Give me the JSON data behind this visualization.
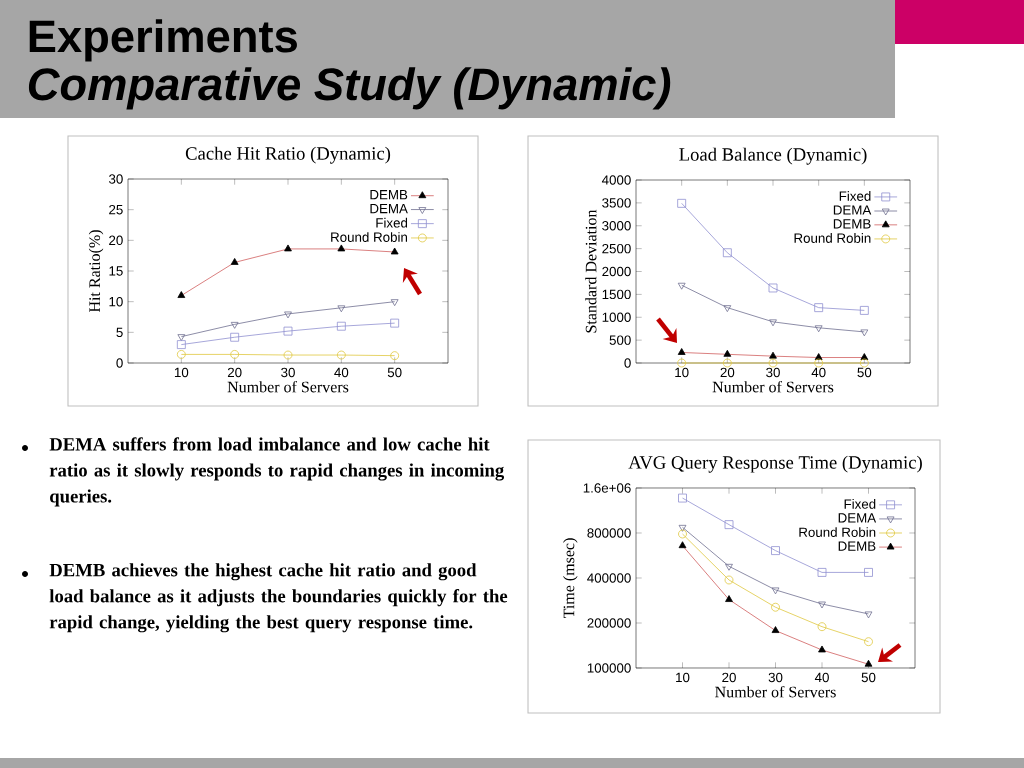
{
  "chart_data": [
    {
      "type": "other",
      "title": "Experiments",
      "subtitle": "Comparative Study (Dynamic)",
      "annotations": [
        "DEMA suffers from load imbalance and low cache hit ratio as it slowly responds to rapid changes in incoming queries.",
        "DEMB achieves the highest cache hit ratio and good load balance as it adjusts the boundaries quickly for the rapid change, yielding the best query response time."
      ]
    },
    {
      "type": "line",
      "title": "Cache Hit Ratio (Dynamic)",
      "xlabel": "Number of Servers",
      "ylabel": "Hit Ratio(%)",
      "x": [
        10,
        20,
        30,
        40,
        50
      ],
      "xlim": [
        0,
        60
      ],
      "xticks": [
        10,
        20,
        30,
        40,
        50
      ],
      "ylim": [
        0,
        30
      ],
      "yticks": [
        0,
        5,
        10,
        15,
        20,
        25,
        30
      ],
      "legend": "top right",
      "series": [
        {
          "name": "DEMB",
          "color": "#d06060",
          "marker": "triangle-filled",
          "values": [
            11.0,
            16.4,
            18.6,
            18.6,
            18.1
          ]
        },
        {
          "name": "DEMA",
          "color": "#707090",
          "marker": "triangle-down",
          "values": [
            4.3,
            6.3,
            8.0,
            9.0,
            10.0
          ]
        },
        {
          "name": "Fixed",
          "color": "#9090d0",
          "marker": "square",
          "values": [
            3.0,
            4.2,
            5.2,
            6.0,
            6.5
          ]
        },
        {
          "name": "Round Robin",
          "color": "#e0c840",
          "marker": "circle",
          "values": [
            1.4,
            1.4,
            1.3,
            1.3,
            1.2
          ]
        }
      ]
    },
    {
      "type": "line",
      "title": "Load Balance (Dynamic)",
      "xlabel": "Number of Servers",
      "ylabel": "Standard Deviation",
      "x": [
        10,
        20,
        30,
        40,
        50
      ],
      "xlim": [
        0,
        60
      ],
      "xticks": [
        10,
        20,
        30,
        40,
        50
      ],
      "ylim": [
        0,
        4000
      ],
      "yticks": [
        0,
        500,
        1000,
        1500,
        2000,
        2500,
        3000,
        3500,
        4000
      ],
      "legend": "top right",
      "series": [
        {
          "name": "Fixed",
          "color": "#9090d0",
          "marker": "square",
          "values": [
            3490,
            2410,
            1640,
            1210,
            1150
          ]
        },
        {
          "name": "DEMA",
          "color": "#707090",
          "marker": "triangle-down",
          "values": [
            1700,
            1210,
            900,
            770,
            680
          ]
        },
        {
          "name": "DEMB",
          "color": "#d06060",
          "marker": "triangle-filled",
          "values": [
            230,
            190,
            150,
            120,
            120
          ]
        },
        {
          "name": "Round Robin",
          "color": "#e0c840",
          "marker": "circle",
          "values": [
            0,
            0,
            0,
            0,
            0
          ]
        }
      ]
    },
    {
      "type": "line",
      "title": "AVG Query Response Time (Dynamic)",
      "xlabel": "Number of Servers",
      "ylabel": "Time (msec)",
      "log": "y",
      "x": [
        10,
        20,
        30,
        40,
        50
      ],
      "xlim": [
        0,
        60
      ],
      "xticks": [
        10,
        20,
        30,
        40,
        50
      ],
      "ylim": [
        100000,
        1600000
      ],
      "yticks": [
        100000,
        200000,
        400000,
        800000,
        {
          "value": 1600000,
          "label": "1.6e+06"
        }
      ],
      "legend": "top right",
      "series": [
        {
          "name": "Fixed",
          "color": "#9090d0",
          "marker": "square",
          "values": [
            1370000,
            910000,
            610000,
            436000,
            436000
          ]
        },
        {
          "name": "DEMA",
          "color": "#707090",
          "marker": "triangle-down",
          "values": [
            873000,
            479000,
            333000,
            268000,
            230000
          ]
        },
        {
          "name": "Round Robin",
          "color": "#e0c840",
          "marker": "circle",
          "values": [
            788000,
            388000,
            255000,
            189000,
            150000
          ]
        },
        {
          "name": "DEMB",
          "color": "#d06060",
          "marker": "triangle-filled",
          "values": [
            658000,
            287000,
            178000,
            132000,
            106000
          ]
        }
      ]
    }
  ]
}
